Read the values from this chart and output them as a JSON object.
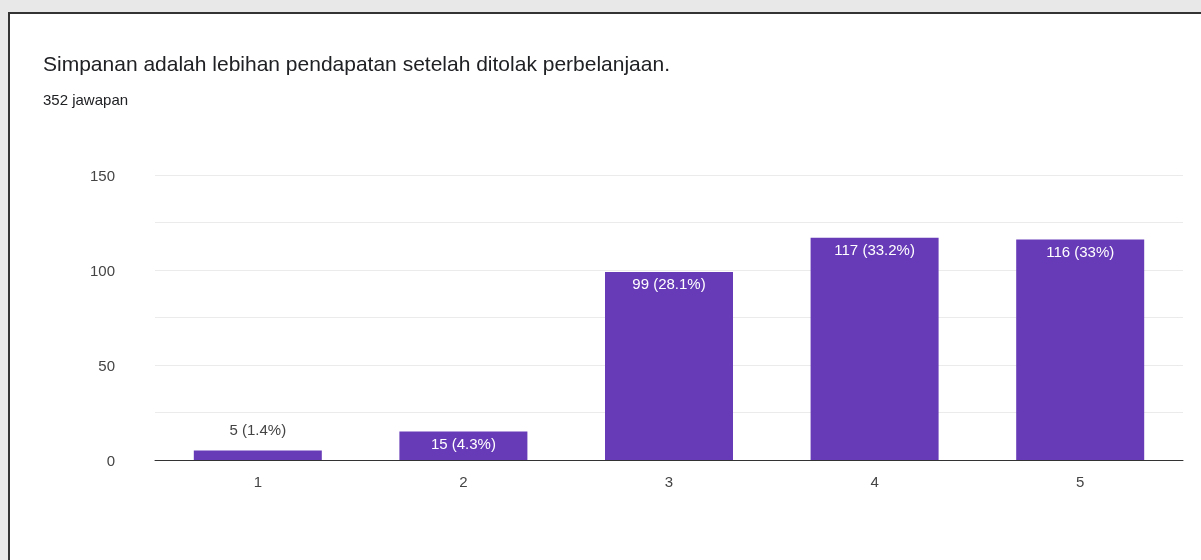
{
  "chart_data": {
    "type": "bar",
    "title": "Simpanan adalah lebihan pendapatan setelah ditolak perbelanjaan.",
    "subtitle": "352 jawapan",
    "categories": [
      "1",
      "2",
      "3",
      "4",
      "5"
    ],
    "values": [
      5,
      15,
      99,
      117,
      116
    ],
    "value_labels": [
      "5 (1.4%)",
      "15 (4.3%)",
      "99 (28.1%)",
      "117 (33.2%)",
      "116 (33%)"
    ],
    "color": "#673ab7",
    "ylim": [
      0,
      150
    ],
    "yticks": [
      0,
      {
        "value": 25,
        "label": null
      },
      50,
      {
        "value": 75,
        "label": null
      },
      100,
      {
        "value": 125,
        "label": null
      },
      150
    ],
    "grid": "y"
  }
}
